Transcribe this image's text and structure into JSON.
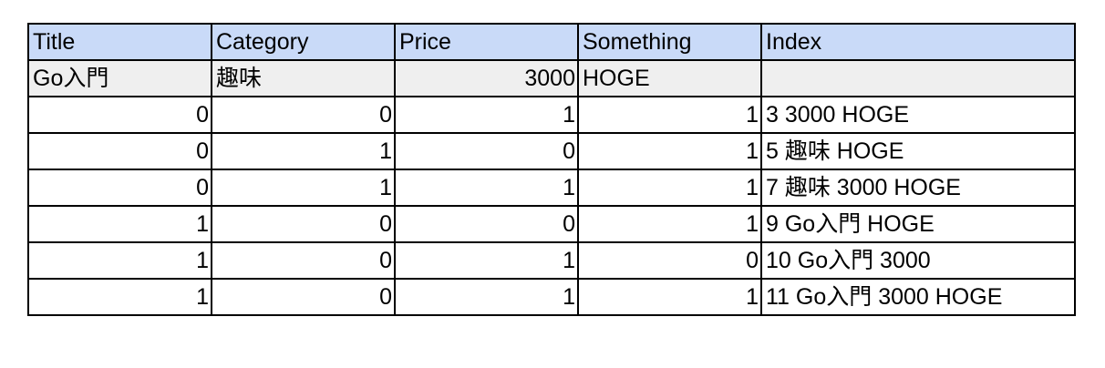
{
  "table": {
    "headers": [
      "Title",
      "Category",
      "Price",
      "Something",
      "Index"
    ],
    "subrow": [
      "Go入門",
      "趣味",
      "3000",
      "HOGE",
      ""
    ],
    "rows": [
      [
        "0",
        "0",
        "1",
        "1",
        "3 3000 HOGE"
      ],
      [
        "0",
        "1",
        "0",
        "1",
        "5 趣味 HOGE"
      ],
      [
        "0",
        "1",
        "1",
        "1",
        "7 趣味 3000 HOGE"
      ],
      [
        "1",
        "0",
        "0",
        "1",
        "9 Go入門 HOGE"
      ],
      [
        "1",
        "0",
        "1",
        "0",
        "10 Go入門 3000"
      ],
      [
        "1",
        "0",
        "1",
        "1",
        "11 Go入門 3000 HOGE"
      ]
    ]
  },
  "colors": {
    "header_bg": "#c9daf8",
    "subrow_bg": "#efefef",
    "border": "#000000"
  }
}
